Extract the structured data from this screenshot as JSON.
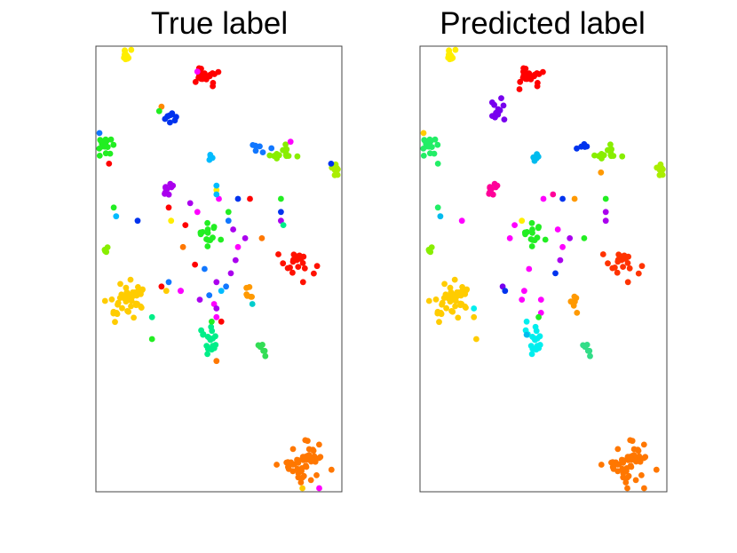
{
  "chart_data": [
    {
      "type": "scatter",
      "title": "True label",
      "xlabel": "",
      "ylabel": "",
      "xlim": [
        0,
        1
      ],
      "ylim": [
        0,
        1
      ],
      "grid": false,
      "ticks": false,
      "clusters": [
        {
          "color": "#ffee00",
          "cx": 0.12,
          "cy": 0.99,
          "sx": 0.012,
          "sy": 0.008,
          "n": 10
        },
        {
          "color": "#ff0000",
          "cx": 0.44,
          "cy": 0.94,
          "sx": 0.025,
          "sy": 0.012,
          "n": 22
        },
        {
          "color": "#0033ee",
          "cx": 0.3,
          "cy": 0.85,
          "sx": 0.015,
          "sy": 0.012,
          "n": 9
        },
        {
          "color": "#22ee22",
          "cx": 0.03,
          "cy": 0.78,
          "sx": 0.022,
          "sy": 0.012,
          "n": 16
        },
        {
          "color": "#00bbff",
          "cx": 0.47,
          "cy": 0.75,
          "sx": 0.006,
          "sy": 0.005,
          "n": 4
        },
        {
          "color": "#1177ff",
          "cx": 0.67,
          "cy": 0.78,
          "sx": 0.025,
          "sy": 0.005,
          "n": 6
        },
        {
          "color": "#88ee00",
          "cx": 0.77,
          "cy": 0.76,
          "sx": 0.025,
          "sy": 0.012,
          "n": 14
        },
        {
          "color": "#aaee00",
          "cx": 0.98,
          "cy": 0.73,
          "sx": 0.012,
          "sy": 0.008,
          "n": 8
        },
        {
          "color": "#aa00ee",
          "cx": 0.28,
          "cy": 0.68,
          "sx": 0.015,
          "sy": 0.01,
          "n": 10
        },
        {
          "color": "#22ee22",
          "cx": 0.46,
          "cy": 0.58,
          "sx": 0.03,
          "sy": 0.014,
          "n": 14
        },
        {
          "color": "#ff1100",
          "cx": 0.83,
          "cy": 0.51,
          "sx": 0.03,
          "sy": 0.015,
          "n": 20
        },
        {
          "color": "#ffcc00",
          "cx": 0.13,
          "cy": 0.43,
          "sx": 0.035,
          "sy": 0.02,
          "n": 45
        },
        {
          "color": "#ff9900",
          "cx": 0.63,
          "cy": 0.44,
          "sx": 0.008,
          "sy": 0.008,
          "n": 6
        },
        {
          "color": "#00ee88",
          "cx": 0.46,
          "cy": 0.33,
          "sx": 0.022,
          "sy": 0.016,
          "n": 18
        },
        {
          "color": "#33dd55",
          "cx": 0.69,
          "cy": 0.31,
          "sx": 0.01,
          "sy": 0.008,
          "n": 6
        },
        {
          "color": "#ff7700",
          "cx": 0.86,
          "cy": 0.06,
          "sx": 0.04,
          "sy": 0.02,
          "n": 55
        },
        {
          "color": "#88ee00",
          "cx": 0.03,
          "cy": 0.54,
          "sx": 0.005,
          "sy": 0.006,
          "n": 4
        }
      ],
      "scattered": [
        {
          "color": "#ff00ff",
          "x": 0.41,
          "y": 0.95
        },
        {
          "color": "#ff8800",
          "x": 0.26,
          "y": 0.87
        },
        {
          "color": "#22ee22",
          "x": 0.25,
          "y": 0.86
        },
        {
          "color": "#1177ff",
          "x": 0.0,
          "y": 0.81
        },
        {
          "color": "#ff0000",
          "x": 0.04,
          "y": 0.74
        },
        {
          "color": "#ff00ff",
          "x": 0.8,
          "y": 0.79
        },
        {
          "color": "#0033ee",
          "x": 0.97,
          "y": 0.74
        },
        {
          "color": "#ffee00",
          "x": 0.49,
          "y": 0.68
        },
        {
          "color": "#ff00ff",
          "x": 0.5,
          "y": 0.66
        },
        {
          "color": "#0033ee",
          "x": 0.58,
          "y": 0.66
        },
        {
          "color": "#ff0000",
          "x": 0.63,
          "y": 0.66
        },
        {
          "color": "#22ee22",
          "x": 0.76,
          "y": 0.66
        },
        {
          "color": "#00bbff",
          "x": 0.49,
          "y": 0.69
        },
        {
          "color": "#00bbff",
          "x": 0.49,
          "y": 0.67
        },
        {
          "color": "#22ee22",
          "x": 0.06,
          "y": 0.64
        },
        {
          "color": "#00bbff",
          "x": 0.07,
          "y": 0.62
        },
        {
          "color": "#0033ee",
          "x": 0.16,
          "y": 0.61
        },
        {
          "color": "#ff0000",
          "x": 0.29,
          "y": 0.64
        },
        {
          "color": "#ffee00",
          "x": 0.3,
          "y": 0.61
        },
        {
          "color": "#aa00ee",
          "x": 0.38,
          "y": 0.65
        },
        {
          "color": "#ff00ff",
          "x": 0.41,
          "y": 0.63
        },
        {
          "color": "#0033ee",
          "x": 0.76,
          "y": 0.63
        },
        {
          "color": "#aa00ee",
          "x": 0.76,
          "y": 0.61
        },
        {
          "color": "#ff0000",
          "x": 0.36,
          "y": 0.6
        },
        {
          "color": "#aa00ee",
          "x": 0.56,
          "y": 0.59
        },
        {
          "color": "#1177ff",
          "x": 0.54,
          "y": 0.61
        },
        {
          "color": "#aa00ee",
          "x": 0.61,
          "y": 0.57
        },
        {
          "color": "#ff7700",
          "x": 0.68,
          "y": 0.57
        },
        {
          "color": "#ff7700",
          "x": 0.35,
          "y": 0.55
        },
        {
          "color": "#ff00ff",
          "x": 0.58,
          "y": 0.55
        },
        {
          "color": "#aa00ee",
          "x": 0.57,
          "y": 0.52
        },
        {
          "color": "#ff0000",
          "x": 0.4,
          "y": 0.51
        },
        {
          "color": "#1177ff",
          "x": 0.44,
          "y": 0.5
        },
        {
          "color": "#aa00ee",
          "x": 0.55,
          "y": 0.49
        },
        {
          "color": "#aa00ee",
          "x": 0.49,
          "y": 0.47
        },
        {
          "color": "#1177ff",
          "x": 0.53,
          "y": 0.46
        },
        {
          "color": "#ff0000",
          "x": 0.26,
          "y": 0.46
        },
        {
          "color": "#aa00ee",
          "x": 0.34,
          "y": 0.45
        },
        {
          "color": "#ff00ff",
          "x": 0.34,
          "y": 0.45
        },
        {
          "color": "#1177ff",
          "x": 0.29,
          "y": 0.47
        },
        {
          "color": "#ffcc00",
          "x": 0.28,
          "y": 0.45
        },
        {
          "color": "#aa00ee",
          "x": 0.42,
          "y": 0.43
        },
        {
          "color": "#1177ff",
          "x": 0.46,
          "y": 0.44
        },
        {
          "color": "#ff00ff",
          "x": 0.48,
          "y": 0.42
        },
        {
          "color": "#aa00ee",
          "x": 0.49,
          "y": 0.41
        },
        {
          "color": "#00bbff",
          "x": 0.51,
          "y": 0.45
        },
        {
          "color": "#ff00ff",
          "x": 0.49,
          "y": 0.39
        },
        {
          "color": "#ff0000",
          "x": 0.51,
          "y": 0.38
        },
        {
          "color": "#22ee22",
          "x": 0.47,
          "y": 0.38
        },
        {
          "color": "#00ee88",
          "x": 0.22,
          "y": 0.39
        },
        {
          "color": "#22ee22",
          "x": 0.22,
          "y": 0.34
        },
        {
          "color": "#00cccc",
          "x": 0.64,
          "y": 0.42
        },
        {
          "color": "#ff7700",
          "x": 0.49,
          "y": 0.29
        },
        {
          "color": "#ffcc00",
          "x": 0.85,
          "y": 0.0
        },
        {
          "color": "#ff00ff",
          "x": 0.92,
          "y": 0.0
        },
        {
          "color": "#00ee88",
          "x": 0.77,
          "y": 0.6
        },
        {
          "color": "#22ee22",
          "x": 0.54,
          "y": 0.63
        }
      ]
    },
    {
      "type": "scatter",
      "title": "Predicted label",
      "xlabel": "",
      "ylabel": "",
      "xlim": [
        0,
        1
      ],
      "ylim": [
        0,
        1
      ],
      "grid": false,
      "ticks": false,
      "clusters": [
        {
          "color": "#ffee00",
          "cx": 0.12,
          "cy": 0.99,
          "sx": 0.012,
          "sy": 0.008,
          "n": 10
        },
        {
          "color": "#ff0000",
          "cx": 0.44,
          "cy": 0.94,
          "sx": 0.025,
          "sy": 0.012,
          "n": 22
        },
        {
          "color": "#7700ee",
          "cx": 0.3,
          "cy": 0.86,
          "sx": 0.018,
          "sy": 0.012,
          "n": 12
        },
        {
          "color": "#22ee66",
          "cx": 0.03,
          "cy": 0.78,
          "sx": 0.022,
          "sy": 0.012,
          "n": 16
        },
        {
          "color": "#0033ee",
          "cx": 0.67,
          "cy": 0.78,
          "sx": 0.022,
          "sy": 0.005,
          "n": 6
        },
        {
          "color": "#00bbee",
          "cx": 0.47,
          "cy": 0.75,
          "sx": 0.006,
          "sy": 0.006,
          "n": 5
        },
        {
          "color": "#88ee00",
          "cx": 0.77,
          "cy": 0.76,
          "sx": 0.025,
          "sy": 0.012,
          "n": 14
        },
        {
          "color": "#aaee00",
          "cx": 0.98,
          "cy": 0.73,
          "sx": 0.012,
          "sy": 0.008,
          "n": 8
        },
        {
          "color": "#ff0099",
          "cx": 0.28,
          "cy": 0.68,
          "sx": 0.015,
          "sy": 0.01,
          "n": 10
        },
        {
          "color": "#22ee22",
          "cx": 0.46,
          "cy": 0.58,
          "sx": 0.03,
          "sy": 0.014,
          "n": 14
        },
        {
          "color": "#ff3300",
          "cx": 0.83,
          "cy": 0.51,
          "sx": 0.03,
          "sy": 0.015,
          "n": 20
        },
        {
          "color": "#ffcc00",
          "cx": 0.13,
          "cy": 0.43,
          "sx": 0.035,
          "sy": 0.02,
          "n": 45
        },
        {
          "color": "#ff9900",
          "cx": 0.63,
          "cy": 0.43,
          "sx": 0.008,
          "sy": 0.01,
          "n": 7
        },
        {
          "color": "#00eeee",
          "cx": 0.46,
          "cy": 0.33,
          "sx": 0.022,
          "sy": 0.016,
          "n": 18
        },
        {
          "color": "#33dd88",
          "cx": 0.69,
          "cy": 0.31,
          "sx": 0.01,
          "sy": 0.008,
          "n": 6
        },
        {
          "color": "#ff7700",
          "cx": 0.86,
          "cy": 0.06,
          "sx": 0.04,
          "sy": 0.02,
          "n": 55
        },
        {
          "color": "#88ee00",
          "cx": 0.03,
          "cy": 0.54,
          "sx": 0.005,
          "sy": 0.006,
          "n": 4
        }
      ],
      "scattered": [
        {
          "color": "#ff0000",
          "x": 0.4,
          "y": 0.91
        },
        {
          "color": "#ffcc00",
          "x": 0.0,
          "y": 0.81
        },
        {
          "color": "#22ee66",
          "x": 0.06,
          "y": 0.74
        },
        {
          "color": "#ff9900",
          "x": 0.74,
          "y": 0.72
        },
        {
          "color": "#ff00ff",
          "x": 0.5,
          "y": 0.66
        },
        {
          "color": "#0033ee",
          "x": 0.58,
          "y": 0.66
        },
        {
          "color": "#ff9900",
          "x": 0.63,
          "y": 0.66
        },
        {
          "color": "#ff0099",
          "x": 0.54,
          "y": 0.67
        },
        {
          "color": "#22ee22",
          "x": 0.76,
          "y": 0.66
        },
        {
          "color": "#22ee66",
          "x": 0.06,
          "y": 0.64
        },
        {
          "color": "#00bbee",
          "x": 0.07,
          "y": 0.62
        },
        {
          "color": "#ff00ff",
          "x": 0.16,
          "y": 0.61
        },
        {
          "color": "#aa00ee",
          "x": 0.76,
          "y": 0.63
        },
        {
          "color": "#aa00ee",
          "x": 0.76,
          "y": 0.61
        },
        {
          "color": "#ffee00",
          "x": 0.41,
          "y": 0.61
        },
        {
          "color": "#ff00ff",
          "x": 0.38,
          "y": 0.6
        },
        {
          "color": "#ff00ff",
          "x": 0.36,
          "y": 0.57
        },
        {
          "color": "#ff00ff",
          "x": 0.56,
          "y": 0.59
        },
        {
          "color": "#aa00ee",
          "x": 0.61,
          "y": 0.57
        },
        {
          "color": "#ff00ff",
          "x": 0.58,
          "y": 0.55
        },
        {
          "color": "#aa00ee",
          "x": 0.57,
          "y": 0.52
        },
        {
          "color": "#ff00ff",
          "x": 0.44,
          "y": 0.5
        },
        {
          "color": "#0033ee",
          "x": 0.55,
          "y": 0.49
        },
        {
          "color": "#7700ee",
          "x": 0.33,
          "y": 0.46
        },
        {
          "color": "#0033ee",
          "x": 0.34,
          "y": 0.45
        },
        {
          "color": "#ff00ff",
          "x": 0.42,
          "y": 0.45
        },
        {
          "color": "#ff00ff",
          "x": 0.41,
          "y": 0.43
        },
        {
          "color": "#ff00ff",
          "x": 0.49,
          "y": 0.43
        },
        {
          "color": "#ff00ff",
          "x": 0.49,
          "y": 0.4
        },
        {
          "color": "#00eeee",
          "x": 0.21,
          "y": 0.41
        },
        {
          "color": "#ffcc00",
          "x": 0.22,
          "y": 0.34
        },
        {
          "color": "#00eeee",
          "x": 0.43,
          "y": 0.38
        },
        {
          "color": "#00bbee",
          "x": 0.43,
          "y": 0.35
        },
        {
          "color": "#22ee22",
          "x": 0.48,
          "y": 0.39
        },
        {
          "color": "#ffcc00",
          "x": 0.21,
          "y": 0.39
        },
        {
          "color": "#ff7700",
          "x": 0.85,
          "y": 0.0
        },
        {
          "color": "#ff7700",
          "x": 0.92,
          "y": 0.0
        },
        {
          "color": "#22ee22",
          "x": 0.67,
          "y": 0.57
        },
        {
          "color": "#ff9900",
          "x": 0.64,
          "y": 0.4
        }
      ]
    }
  ]
}
